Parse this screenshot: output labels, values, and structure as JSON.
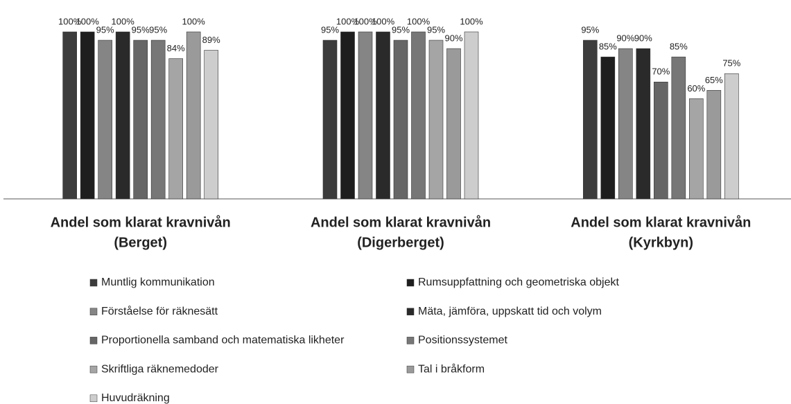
{
  "chart_data": {
    "type": "bar",
    "categories": [
      [
        "Andel som klarat kravnivån",
        "(Berget)"
      ],
      [
        "Andel som klarat kravnivån",
        "(Digerberget)"
      ],
      [
        "Andel som klarat kravnivån",
        "(Kyrkbyn)"
      ]
    ],
    "ylim": [
      0,
      100
    ],
    "series": [
      {
        "name": "Muntlig kommunikation",
        "color": "#3c3c3c",
        "values": [
          100,
          95,
          95
        ],
        "value_labels": [
          "100%",
          "95%",
          "95%"
        ]
      },
      {
        "name": "Rumsuppfattning och geometriska objekt",
        "color": "#1e1e1e",
        "values": [
          100,
          100,
          85
        ],
        "value_labels": [
          "100%",
          "100%",
          "85%"
        ]
      },
      {
        "name": "Förståelse för räknesätt",
        "color": "#858585",
        "values": [
          95,
          100,
          90
        ],
        "value_labels": [
          "95%",
          "100%",
          "90%"
        ]
      },
      {
        "name": "Mäta, jämföra, uppskatt tid och volym",
        "color": "#2a2a2a",
        "values": [
          100,
          100,
          90
        ],
        "value_labels": [
          "100%",
          "100%",
          "90%"
        ]
      },
      {
        "name": "Proportionella samband och matematiska likheter",
        "color": "#666666",
        "values": [
          95,
          95,
          70
        ],
        "value_labels": [
          "95%",
          "95%",
          "70%"
        ]
      },
      {
        "name": "Positionssystemet",
        "color": "#777777",
        "values": [
          95,
          100,
          85
        ],
        "value_labels": [
          "95%",
          "100%",
          "85%"
        ]
      },
      {
        "name": "Skriftliga räknemedoder",
        "color": "#a5a5a5",
        "values": [
          84,
          95,
          60
        ],
        "value_labels": [
          "84%",
          "95%",
          "60%"
        ]
      },
      {
        "name": "Tal i bråkform",
        "color": "#9a9a9a",
        "values": [
          100,
          90,
          65
        ],
        "value_labels": [
          "100%",
          "90%",
          "65%"
        ]
      },
      {
        "name": "Huvudräkning",
        "color": "#cdcdcd",
        "values": [
          89,
          100,
          75
        ],
        "value_labels": [
          "89%",
          "100%",
          "75%"
        ]
      }
    ]
  }
}
